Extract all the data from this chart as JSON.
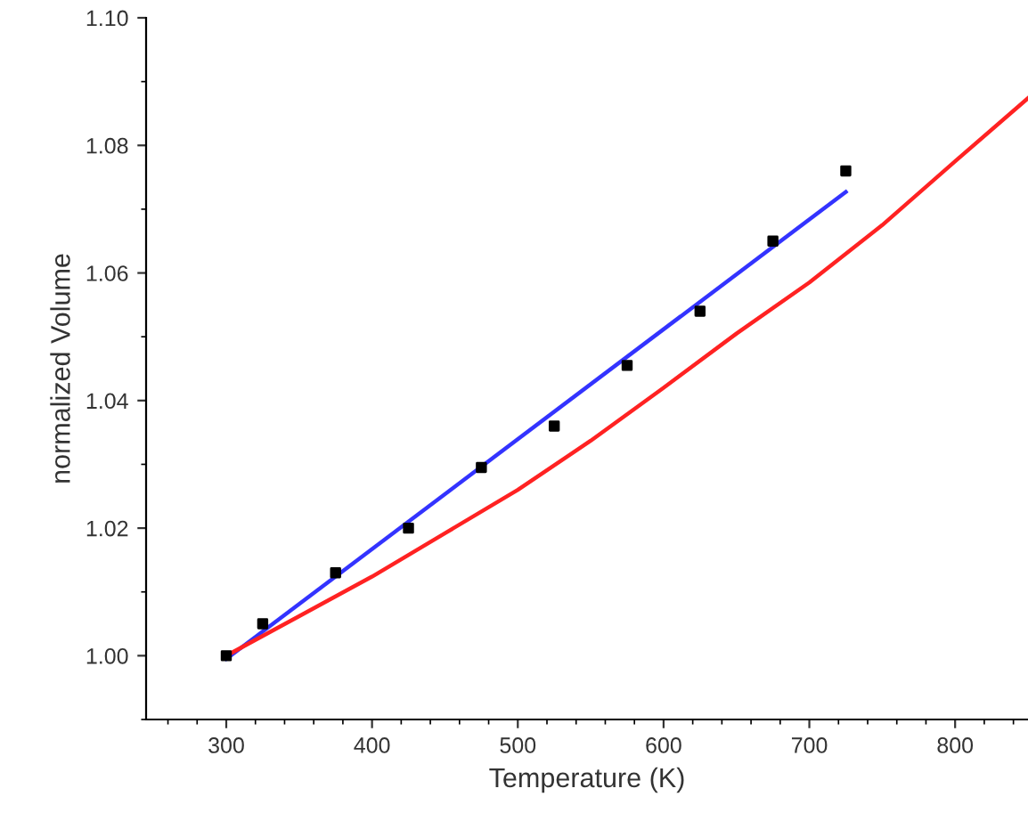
{
  "chart_data": {
    "type": "line",
    "xlabel": "Temperature (K)",
    "ylabel": "normalized Volume",
    "xlim": [
      245,
      850
    ],
    "xticks": [
      300,
      400,
      500,
      600,
      700,
      800
    ],
    "ylim": [
      0.99,
      1.1
    ],
    "yticks": [
      {
        "value": 1.0,
        "label": "1.00"
      },
      {
        "value": 1.02,
        "label": "1.02"
      },
      {
        "value": 1.04,
        "label": "1.04"
      },
      {
        "value": 1.06,
        "label": "1.06"
      },
      {
        "value": 1.08,
        "label": "1.08"
      },
      {
        "value": 1.1,
        "label": "1.10"
      }
    ],
    "grid": false,
    "legend": false,
    "series": [
      {
        "type": "scatter",
        "color": "#000000",
        "marker": "square",
        "x": [
          300,
          325,
          375,
          425,
          475,
          525,
          575,
          625,
          675,
          725
        ],
        "values": [
          1.0,
          1.005,
          1.013,
          1.02,
          1.0295,
          1.036,
          1.0455,
          1.054,
          1.065,
          1.076
        ]
      },
      {
        "color": "#3333ff",
        "x": [
          300,
          725
        ],
        "values": [
          0.9995,
          1.0727
        ]
      },
      {
        "color": "#ff2222",
        "x": [
          300,
          350,
          400,
          450,
          500,
          550,
          600,
          650,
          700,
          750,
          800,
          850
        ],
        "values": [
          1.0,
          1.0062,
          1.0124,
          1.0192,
          1.026,
          1.0337,
          1.042,
          1.0505,
          1.0585,
          1.0675,
          1.0775,
          1.0874
        ]
      }
    ]
  }
}
